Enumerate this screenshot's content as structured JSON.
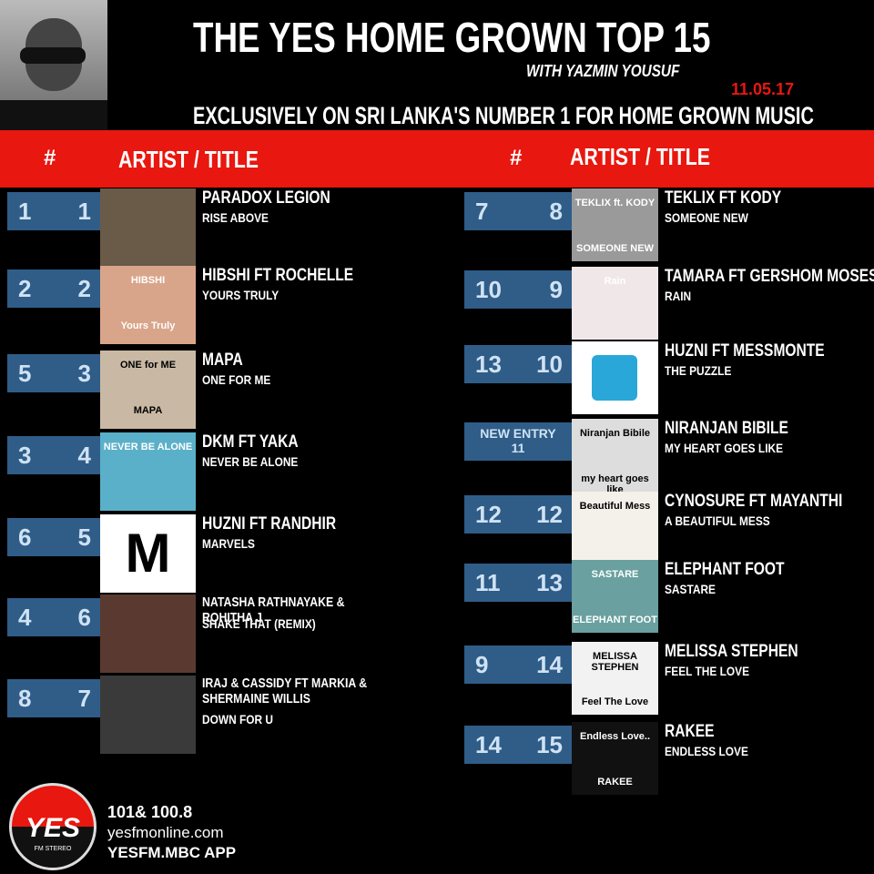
{
  "header": {
    "title": "THE YES HOME GROWN TOP 15",
    "host": "WITH YAZMIN YOUSUF",
    "date": "11.05.17",
    "subtitle": "EXCLUSIVELY ON SRI LANKA'S NUMBER 1 FOR HOME GROWN MUSIC"
  },
  "columns": {
    "left": [
      "#",
      "ARTIST / TITLE"
    ],
    "right": [
      "#",
      "ARTIST / TITLE"
    ]
  },
  "entries": [
    {
      "last": "1",
      "pos": "1",
      "artist": "PARADOX LEGION",
      "title": "RISE ABOVE"
    },
    {
      "last": "2",
      "pos": "2",
      "artist": "HIBSHI FT ROCHELLE",
      "title": "YOURS TRULY",
      "cover": [
        "HIBSHI",
        "Yours Truly"
      ]
    },
    {
      "last": "5",
      "pos": "3",
      "artist": "MAPA",
      "title": "ONE FOR ME",
      "cover": [
        "ONE for ME",
        "MAPA"
      ]
    },
    {
      "last": "3",
      "pos": "4",
      "artist": "DKM FT YAKA",
      "title": "NEVER BE ALONE",
      "cover": [
        "NEVER BE ALONE"
      ]
    },
    {
      "last": "6",
      "pos": "5",
      "artist": "HUZNI FT RANDHIR",
      "title": "MARVELS",
      "cover": [
        "M"
      ]
    },
    {
      "last": "4",
      "pos": "6",
      "artist": "NATASHA RATHNAYAKE & ROHITHA J",
      "title": "SHAKE THAT (REMIX)"
    },
    {
      "last": "8",
      "pos": "7",
      "artist": "IRAJ & CASSIDY FT MARKIA & SHERMAINE WILLIS",
      "title": "DOWN FOR U"
    },
    {
      "last": "7",
      "pos": "8",
      "artist": "TEKLIX FT KODY",
      "title": "SOMEONE NEW",
      "cover": [
        "TEKLIX ft. KODY",
        "SOMEONE NEW"
      ]
    },
    {
      "last": "10",
      "pos": "9",
      "artist": "TAMARA FT GERSHOM MOSES",
      "title": "RAIN",
      "cover": [
        "Rain"
      ]
    },
    {
      "last": "13",
      "pos": "10",
      "artist": "HUZNI FT MESSMONTE",
      "title": "THE PUZZLE"
    },
    {
      "last": "NEW ENTRY",
      "pos": "11",
      "artist": "NIRANJAN BIBILE",
      "title": "MY HEART GOES LIKE",
      "cover": [
        "Niranjan Bibile",
        "my heart goes like"
      ]
    },
    {
      "last": "12",
      "pos": "12",
      "artist": "CYNOSURE FT MAYANTHI",
      "title": "A BEAUTIFUL MESS",
      "cover": [
        "Beautiful Mess"
      ]
    },
    {
      "last": "11",
      "pos": "13",
      "artist": "ELEPHANT FOOT",
      "title": "SASTARE",
      "cover": [
        "SASTARE",
        "ELEPHANT FOOT"
      ]
    },
    {
      "last": "9",
      "pos": "14",
      "artist": "MELISSA STEPHEN",
      "title": "FEEL THE LOVE",
      "cover": [
        "MELISSA STEPHEN",
        "Feel The Love"
      ]
    },
    {
      "last": "14",
      "pos": "15",
      "artist": "RAKEE",
      "title": "ENDLESS LOVE",
      "cover": [
        "Endless Love..",
        "RAKEE"
      ]
    }
  ],
  "footer": {
    "logo": "YES",
    "logo_sub": "FM STEREO",
    "frequency": "101& 100.8",
    "website": "yesfmonline.com",
    "app": "YESFM.MBC APP"
  }
}
